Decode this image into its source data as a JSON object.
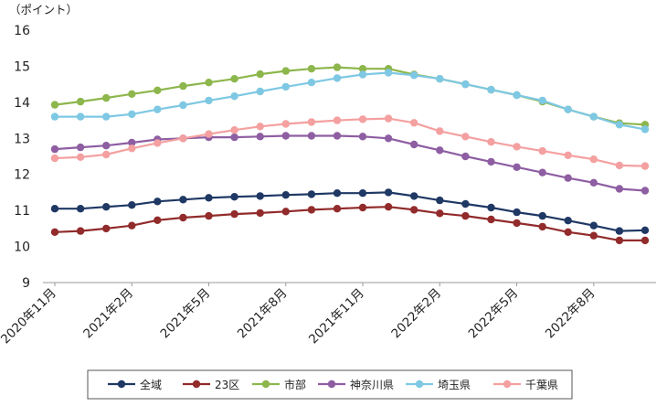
{
  "chart_data": {
    "type": "line",
    "unit_label": "（ポイント）",
    "ylim": [
      9,
      16
    ],
    "yticks": [
      "9",
      "10",
      "11",
      "12",
      "13",
      "14",
      "15",
      "16"
    ],
    "grid": false,
    "legend_position": "bottom",
    "x_tick_labels": [
      "2020年11月",
      "2021年2月",
      "2021年5月",
      "2021年8月",
      "2021年11月",
      "2022年2月",
      "2022年5月",
      "2022年8月"
    ],
    "x": [
      "2020-11",
      "2020-12",
      "2021-01",
      "2021-02",
      "2021-03",
      "2021-04",
      "2021-05",
      "2021-06",
      "2021-07",
      "2021-08",
      "2021-09",
      "2021-10",
      "2021-11",
      "2021-12",
      "2022-01",
      "2022-02",
      "2022-03",
      "2022-04",
      "2022-05",
      "2022-06",
      "2022-07",
      "2022-08",
      "2022-09",
      "2022-10"
    ],
    "series": [
      {
        "name": "全域",
        "color": "#1f3864",
        "values": [
          11.05,
          11.05,
          11.1,
          11.15,
          11.25,
          11.3,
          11.35,
          11.38,
          11.4,
          11.43,
          11.45,
          11.48,
          11.48,
          11.5,
          11.4,
          11.28,
          11.18,
          11.08,
          10.95,
          10.85,
          10.72,
          10.58,
          10.43,
          10.45
        ]
      },
      {
        "name": "23区",
        "color": "#922b2b",
        "values": [
          10.4,
          10.43,
          10.5,
          10.58,
          10.73,
          10.8,
          10.85,
          10.9,
          10.93,
          10.97,
          11.02,
          11.05,
          11.08,
          11.1,
          11.02,
          10.92,
          10.85,
          10.75,
          10.65,
          10.55,
          10.4,
          10.3,
          10.17,
          10.17
        ]
      },
      {
        "name": "市部",
        "color": "#8db64c",
        "values": [
          13.93,
          14.02,
          14.12,
          14.23,
          14.33,
          14.45,
          14.55,
          14.65,
          14.78,
          14.87,
          14.93,
          14.97,
          14.93,
          14.93,
          14.77,
          14.65,
          14.5,
          14.35,
          14.2,
          14.02,
          13.8,
          13.6,
          13.42,
          13.38
        ]
      },
      {
        "name": "神奈川県",
        "color": "#8e5ea2",
        "values": [
          12.7,
          12.75,
          12.8,
          12.88,
          12.97,
          13.0,
          13.03,
          13.03,
          13.05,
          13.07,
          13.07,
          13.07,
          13.05,
          13.0,
          12.83,
          12.67,
          12.5,
          12.35,
          12.2,
          12.05,
          11.9,
          11.77,
          11.6,
          11.55
        ]
      },
      {
        "name": "埼玉県",
        "color": "#7ec8e3",
        "values": [
          13.6,
          13.6,
          13.6,
          13.67,
          13.8,
          13.92,
          14.05,
          14.17,
          14.3,
          14.43,
          14.55,
          14.67,
          14.77,
          14.82,
          14.75,
          14.65,
          14.5,
          14.35,
          14.2,
          14.05,
          13.8,
          13.6,
          13.38,
          13.25
        ]
      },
      {
        "name": "千葉県",
        "color": "#f4a0a0",
        "values": [
          12.45,
          12.48,
          12.55,
          12.72,
          12.87,
          13.0,
          13.12,
          13.23,
          13.33,
          13.4,
          13.45,
          13.5,
          13.53,
          13.55,
          13.43,
          13.2,
          13.05,
          12.9,
          12.77,
          12.65,
          12.53,
          12.42,
          12.25,
          12.23
        ]
      }
    ]
  }
}
